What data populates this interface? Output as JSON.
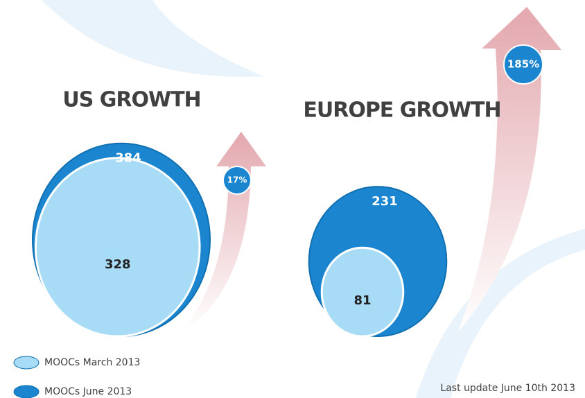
{
  "legend": [
    {
      "name": "MOOCs March 2013",
      "color": "#a8dcf6"
    },
    {
      "name": "MOOCs June 2013",
      "color": "#1b86cf"
    }
  ],
  "footnote": "Last update June 10th 2013",
  "chart_data": [
    {
      "type": "bubble",
      "title": "US GROWTH",
      "values": [
        328,
        384
      ],
      "annotation": "17%"
    },
    {
      "type": "bubble",
      "title": "EUROPE GROWTH",
      "values": [
        81,
        231
      ],
      "annotation": "185%"
    }
  ]
}
